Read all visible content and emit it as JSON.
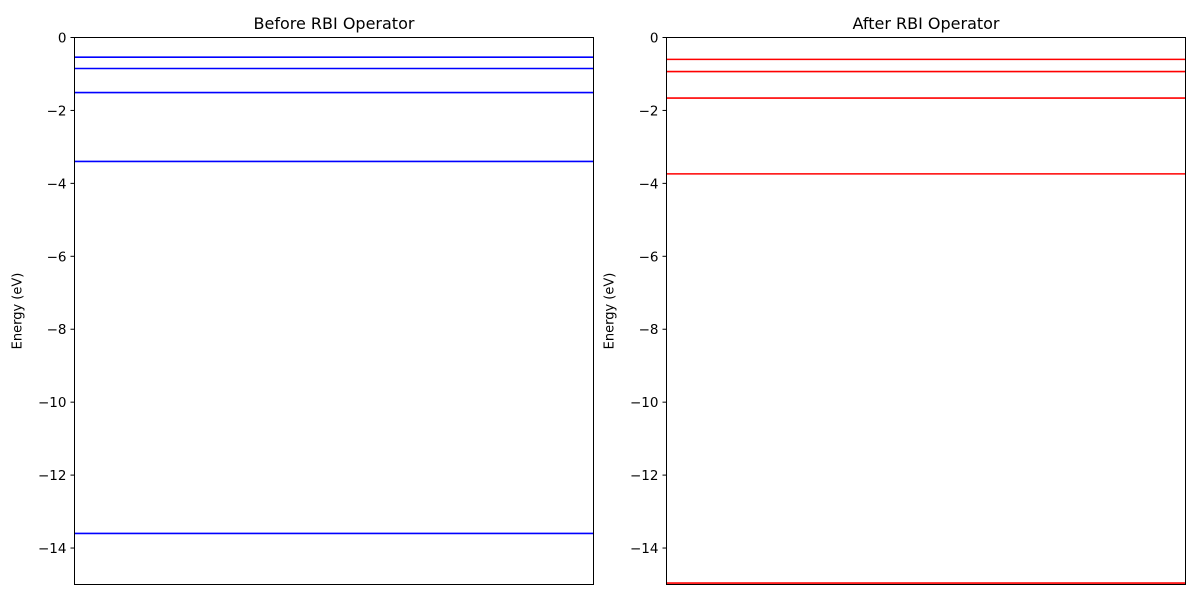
{
  "chart_data": [
    {
      "type": "line",
      "title": "Before RBI Operator",
      "xlabel": "",
      "ylabel": "Energy (eV)",
      "ylim": [
        -15,
        0
      ],
      "yticks": [
        0,
        -2,
        -4,
        -6,
        -8,
        -10,
        -12,
        -14
      ],
      "ytick_labels": [
        "0",
        "−2",
        "−4",
        "−6",
        "−8",
        "−10",
        "−12",
        "−14"
      ],
      "grid": false,
      "series": [
        {
          "color": "#0000ff",
          "values": [
            -13.6,
            -3.4,
            -1.51,
            -0.85,
            -0.54
          ]
        }
      ]
    },
    {
      "type": "line",
      "title": "After RBI Operator",
      "xlabel": "",
      "ylabel": "Energy (eV)",
      "ylim": [
        -15,
        0
      ],
      "yticks": [
        0,
        -2,
        -4,
        -6,
        -8,
        -10,
        -12,
        -14
      ],
      "ytick_labels": [
        "0",
        "−2",
        "−4",
        "−6",
        "−8",
        "−10",
        "−12",
        "−14"
      ],
      "grid": false,
      "series": [
        {
          "color": "#ff0000",
          "values": [
            -14.96,
            -3.74,
            -1.66,
            -0.935,
            -0.6
          ]
        }
      ]
    }
  ]
}
